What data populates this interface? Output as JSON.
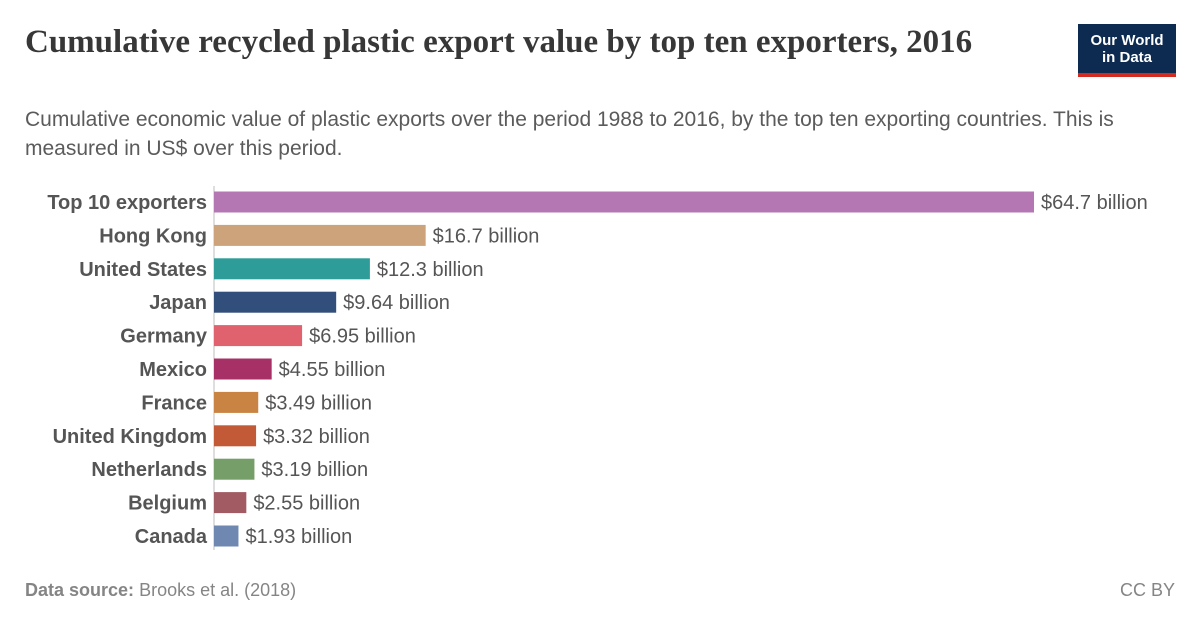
{
  "header": {
    "title": "Cumulative recycled plastic export value by top ten exporters, 2016",
    "subtitle": "Cumulative economic value of plastic exports over the period 1988 to 2016, by the top ten exporting countries. This is measured in US$ over this period."
  },
  "logo": {
    "line1": "Our World",
    "line2": "in Data",
    "background": "#0d2a51",
    "accent": "#d42b21"
  },
  "footer": {
    "source_label": "Data source:",
    "source": "Brooks et al. (2018)",
    "license": "CC BY"
  },
  "chart_data": {
    "type": "bar",
    "orientation": "horizontal",
    "categories": [
      "Top 10 exporters",
      "Hong Kong",
      "United States",
      "Japan",
      "Germany",
      "Mexico",
      "France",
      "United Kingdom",
      "Netherlands",
      "Belgium",
      "Canada"
    ],
    "values": [
      64.7,
      16.7,
      12.3,
      9.64,
      6.95,
      4.55,
      3.49,
      3.32,
      3.19,
      2.55,
      1.93
    ],
    "value_labels": [
      "$64.7 billion",
      "$16.7 billion",
      "$12.3 billion",
      "$9.64 billion",
      "$6.95 billion",
      "$4.55 billion",
      "$3.49 billion",
      "$3.32 billion",
      "$3.19 billion",
      "$2.55 billion",
      "$1.93 billion"
    ],
    "colors": [
      "#b577b3",
      "#cca37b",
      "#2e9c98",
      "#324f7b",
      "#e1626f",
      "#a73067",
      "#c98342",
      "#c25a37",
      "#769e68",
      "#a25b63",
      "#6e88b2"
    ],
    "unit": "US$ billion",
    "xlim": [
      0,
      64.7
    ],
    "grid": false,
    "legend": "none"
  }
}
